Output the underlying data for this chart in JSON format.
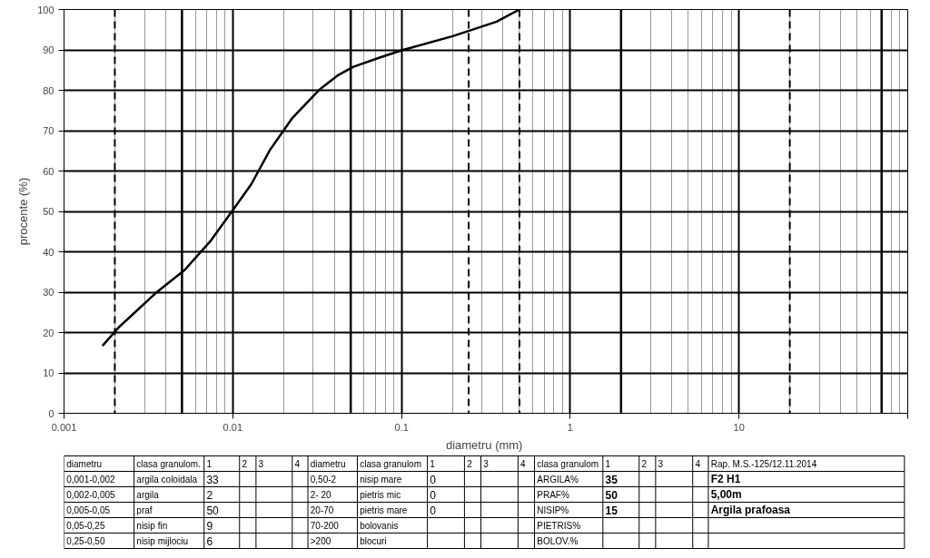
{
  "chart_data": [
    {
      "type": "line",
      "xlabel": "diametru  (mm)",
      "ylabel": "procente (%)",
      "log": "x",
      "grid": true,
      "marker": "none",
      "line_style": "solid",
      "xlim": [
        0.001,
        100
      ],
      "xticks": [
        0.001,
        0.01,
        0.1,
        1,
        10,
        {
          "value": 100,
          "label": null
        }
      ],
      "ylim": [
        0,
        100
      ],
      "yticks": [
        0,
        10,
        20,
        30,
        40,
        50,
        60,
        70,
        80,
        90,
        100
      ],
      "x": [
        0.00169,
        0.00211,
        0.00348,
        0.00519,
        0.00736,
        0.01,
        0.0129,
        0.0166,
        0.0226,
        0.0329,
        0.0423,
        0.0519,
        0.0741,
        0.1,
        0.201,
        0.366,
        0.5
      ],
      "series": [
        {
          "color": "#000000",
          "values": [
            16.7,
            21.3,
            29.7,
            35.5,
            42.6,
            50.3,
            56.8,
            65.2,
            73.2,
            80.3,
            83.8,
            85.8,
            88.1,
            89.9,
            93.4,
            97.0,
            100
          ]
        }
      ],
      "ref_lines": [
        {
          "axis": "x",
          "value": 0.002,
          "line_style": "dashed",
          "color": "#000000"
        },
        {
          "axis": "x",
          "value": 0.005,
          "line_style": "solid",
          "color": "#000000"
        },
        {
          "axis": "x",
          "value": 0.05,
          "line_style": "solid",
          "color": "#000000"
        },
        {
          "axis": "x",
          "value": 0.25,
          "line_style": "dashed",
          "color": "#000000"
        },
        {
          "axis": "x",
          "value": 0.5,
          "line_style": "dashed",
          "color": "#000000"
        },
        {
          "axis": "x",
          "value": 2,
          "line_style": "solid",
          "color": "#000000"
        },
        {
          "axis": "x",
          "value": 20,
          "line_style": "dashed",
          "color": "#000000"
        },
        {
          "axis": "x",
          "value": 70,
          "line_style": "solid",
          "color": "#000000"
        }
      ]
    },
    {
      "type": "other",
      "annotations": [
        "diametru",
        "clasa granulom.",
        "1",
        "2",
        "3",
        "4",
        "diametru",
        "clasa granulom",
        "1",
        "2",
        "3",
        "4",
        "clasa granulom",
        "1",
        "2",
        "3",
        "4",
        "Rap. M.S.-125/12.11.2014",
        "0,001-0,002",
        "argila coloidala",
        "33",
        "0,50-2",
        "nisip mare",
        "0",
        "ARGILA%",
        "35",
        "F2 H1",
        "0,002-0,005",
        "argila",
        "2",
        "2- 20",
        "pietris mic",
        "0",
        "PRAF%",
        "50",
        "5,00m",
        "0,005-0,05",
        "praf",
        "50",
        "20-70",
        "pietris mare",
        "0",
        "NISIP%",
        "15",
        "Argila prafoasa",
        "0,05-0,25",
        "nisip fin",
        "9",
        "70-200",
        "bolovanis",
        "PIETRIS%",
        "0,25-0,50",
        "nisip mijlociu",
        "6",
        ">200",
        "blocuri",
        "BOLOV.%"
      ]
    }
  ]
}
